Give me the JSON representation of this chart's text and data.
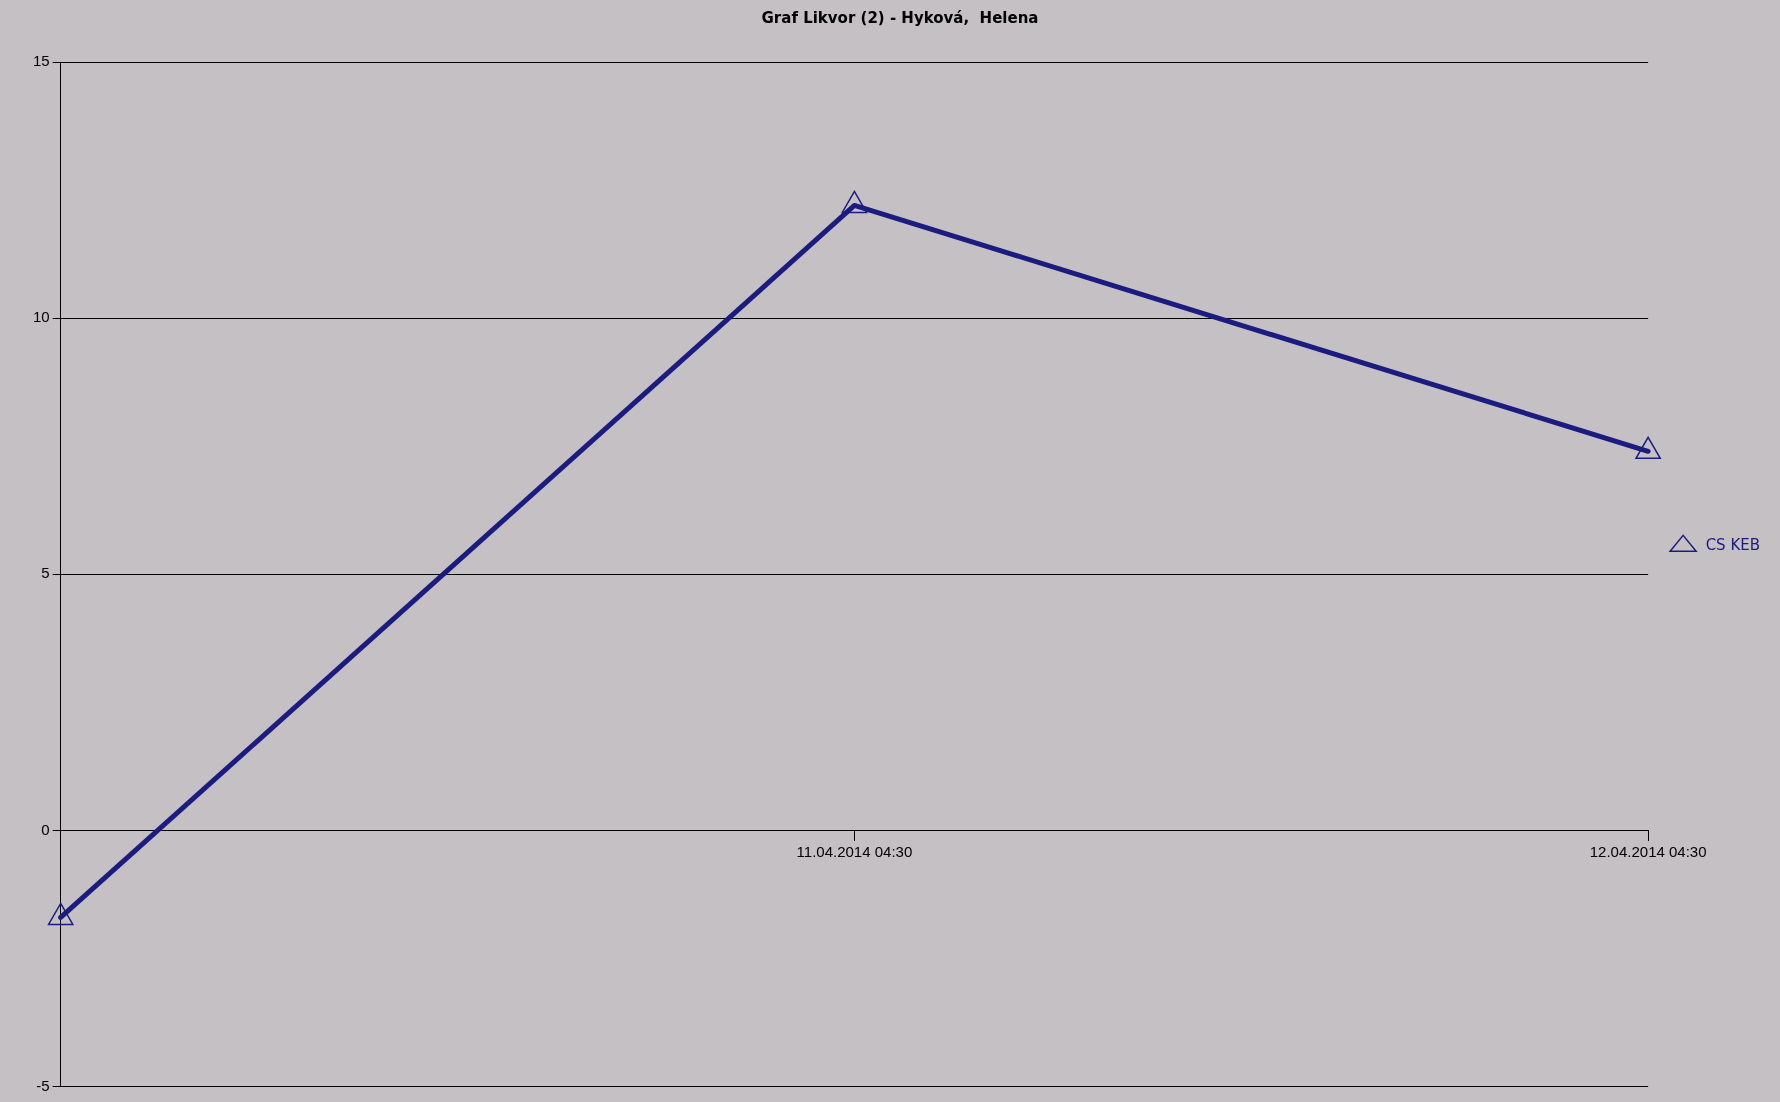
{
  "chart_data": {
    "type": "line",
    "title": "Graf Likvor (2) - Hyková,  Helena",
    "x": [
      "2014-04-10T04:30",
      "2014-04-11T04:30",
      "2014-04-12T04:30"
    ],
    "series": [
      {
        "name": "CS KEB",
        "color": "#1c1c80",
        "values": [
          -1.7,
          12.2,
          7.4
        ]
      }
    ],
    "xlim": [
      "2014-04-10T04:30",
      "2014-04-12T04:30"
    ],
    "xticks": [
      {
        "value": "2014-04-11T04:30",
        "label": "11.04.2014 04:30"
      },
      {
        "value": "2014-04-12T04:30",
        "label": "12.04.2014 04:30"
      }
    ],
    "ylim": [
      -5,
      15
    ],
    "yticks": [
      -5,
      0,
      5,
      10,
      15
    ],
    "grid": "y",
    "legend": "right",
    "marker": "triangle",
    "line_style": "solid"
  }
}
